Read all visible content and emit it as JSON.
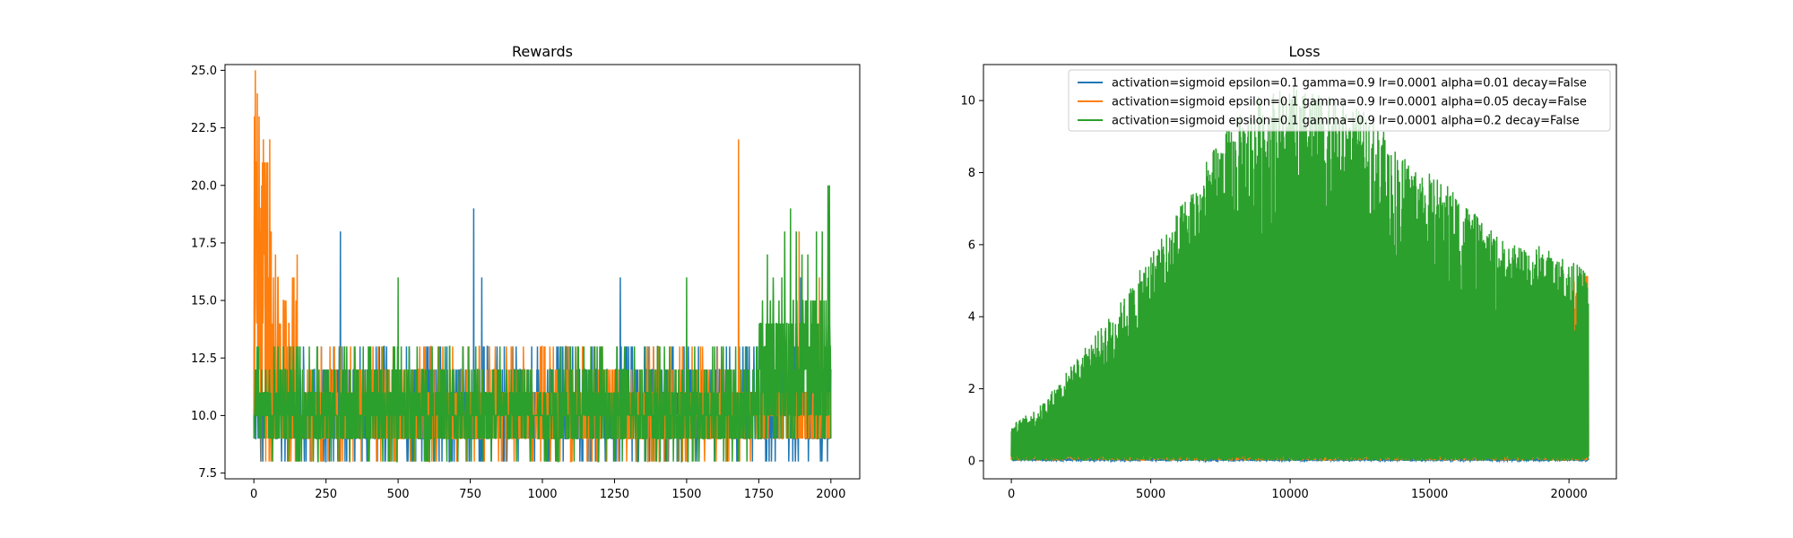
{
  "chart_data": [
    {
      "type": "line",
      "title": "Rewards",
      "xlabel": "",
      "ylabel": "",
      "xlim": [
        -100,
        2100
      ],
      "ylim": [
        7.25,
        25.25
      ],
      "x_ticks": [
        "0",
        "250",
        "500",
        "750",
        "1000",
        "1250",
        "1500",
        "1750",
        "2000"
      ],
      "y_ticks": [
        "7.5",
        "10.0",
        "12.5",
        "15.0",
        "17.5",
        "20.0",
        "22.5",
        "25.0"
      ],
      "x_range": [
        0,
        2000
      ],
      "series": [
        {
          "color": "#1f77b4",
          "baseline": 10,
          "min": 8,
          "peaks": [
            [
              300,
              18
            ],
            [
              762,
              19
            ],
            [
              1270,
              16
            ],
            [
              790,
              16
            ],
            [
              1895,
              16
            ],
            [
              1995,
              15
            ],
            [
              1965,
              14
            ]
          ]
        },
        {
          "color": "#ff7f0e",
          "baseline": 10,
          "min": 8,
          "peaks": [
            [
              2,
              23
            ],
            [
              5,
              25
            ],
            [
              12,
              24
            ],
            [
              18,
              23
            ],
            [
              25,
              19
            ],
            [
              30,
              21
            ],
            [
              45,
              19
            ],
            [
              60,
              18
            ],
            [
              75,
              17
            ],
            [
              150,
              17
            ],
            [
              1680,
              22
            ],
            [
              1890,
              18
            ],
            [
              1960,
              16
            ]
          ]
        },
        {
          "color": "#2ca02c",
          "baseline": 10,
          "min": 8,
          "peaks": [
            [
              1840,
              18
            ],
            [
              1860,
              19
            ],
            [
              1900,
              17
            ],
            [
              1950,
              18
            ],
            [
              1990,
              20
            ],
            [
              1995,
              20
            ],
            [
              1970,
              18
            ],
            [
              1920,
              17
            ],
            [
              1780,
              17
            ],
            [
              1800,
              16
            ],
            [
              1830,
              16
            ],
            [
              1880,
              18
            ],
            [
              500,
              16
            ],
            [
              1500,
              16
            ]
          ]
        }
      ]
    },
    {
      "type": "line",
      "title": "Loss",
      "xlabel": "",
      "ylabel": "",
      "xlim": [
        -1000,
        21700
      ],
      "ylim": [
        -0.5,
        11.0
      ],
      "x_ticks": [
        "0",
        "5000",
        "10000",
        "15000",
        "20000"
      ],
      "y_ticks": [
        "0",
        "2",
        "4",
        "6",
        "8",
        "10"
      ],
      "x_range": [
        0,
        20700
      ],
      "legend_position": "top-right",
      "series": [
        {
          "name": "activation=sigmoid epsilon=0.1 gamma=0.9 lr=0.0001 alpha=0.01 decay=False",
          "color": "#1f77b4",
          "envelope": [
            [
              0,
              0.1
            ],
            [
              20700,
              0.1
            ]
          ]
        },
        {
          "name": "activation=sigmoid epsilon=0.1 gamma=0.9 lr=0.0001 alpha=0.05 decay=False",
          "color": "#ff7f0e",
          "envelope": [
            [
              0,
              0.5
            ],
            [
              5000,
              2.5
            ],
            [
              10000,
              4.5
            ],
            [
              14000,
              4.5
            ],
            [
              15000,
              4.0
            ],
            [
              17000,
              4.5
            ],
            [
              19000,
              5.0
            ],
            [
              20700,
              5.3
            ]
          ]
        },
        {
          "name": "activation=sigmoid epsilon=0.1 gamma=0.9 lr=0.0001 alpha=0.2 decay=False",
          "color": "#2ca02c",
          "envelope": [
            [
              0,
              1.0
            ],
            [
              1000,
              1.5
            ],
            [
              2500,
              3.0
            ],
            [
              4000,
              4.5
            ],
            [
              5000,
              5.8
            ],
            [
              6000,
              7.0
            ],
            [
              7500,
              9.0
            ],
            [
              9000,
              10.3
            ],
            [
              10000,
              10.4
            ],
            [
              12000,
              10.0
            ],
            [
              13000,
              9.5
            ],
            [
              14000,
              8.5
            ],
            [
              15000,
              8.0
            ],
            [
              16000,
              7.5
            ],
            [
              17000,
              6.5
            ],
            [
              18000,
              6.0
            ],
            [
              19000,
              6.0
            ],
            [
              20700,
              5.3
            ]
          ]
        }
      ]
    }
  ]
}
